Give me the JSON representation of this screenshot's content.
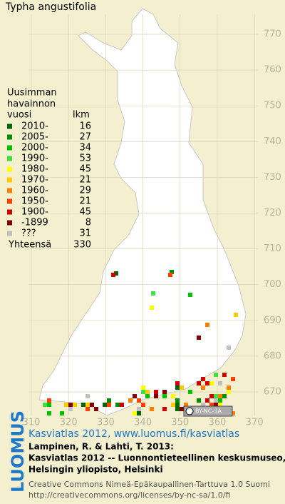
{
  "title": "Typha angustifolia",
  "legend": {
    "heading": [
      "Uusimman",
      "havainnon",
      "vuosi"
    ],
    "count_heading": "lkm",
    "rows": [
      {
        "label": "2010-",
        "count": 16,
        "color": "#006400"
      },
      {
        "label": "2005-",
        "count": 27,
        "color": "#008c00"
      },
      {
        "label": "2000-",
        "count": 34,
        "color": "#00c000"
      },
      {
        "label": "1990-",
        "count": 53,
        "color": "#40e040"
      },
      {
        "label": "1980-",
        "count": 45,
        "color": "#ffff00"
      },
      {
        "label": "1970-",
        "count": 21,
        "color": "#ffcc00"
      },
      {
        "label": "1960-",
        "count": 29,
        "color": "#ff8000"
      },
      {
        "label": "1950-",
        "count": 21,
        "color": "#ff4000"
      },
      {
        "label": "1900-",
        "count": 45,
        "color": "#cc0000"
      },
      {
        "label": "-1899",
        "count": 8,
        "color": "#800000"
      },
      {
        "label": "???",
        "count": 31,
        "color": "#c0c0c0"
      }
    ],
    "total_label": "Yhteensä",
    "total": 330
  },
  "grid_y_labels": [
    "770",
    "760",
    "750",
    "740",
    "730",
    "720",
    "710",
    "700",
    "690",
    "680",
    "670"
  ],
  "grid_x_labels": [
    "310",
    "320",
    "330",
    "340",
    "350",
    "360",
    "370"
  ],
  "license_badge": "BY-NC-SA",
  "footer": {
    "brand": "LUOMUS",
    "link": "Kasviatlas 2012, www.luomus.fi/kasviatlas",
    "citation": [
      "Lampinen, R. & Lahti, T. 2013:",
      "Kasviatlas 2012 -- Luonnontieteellinen keskusmuseo,",
      "Helsingin yliopisto, Helsinki"
    ],
    "license": [
      "Creative Commons Nimeä-Epäkaupallinen-Tarttuva 1.0 Suomi",
      "http://creativecommons.org/licenses/by-nc-sa/1.0/fi"
    ]
  }
}
